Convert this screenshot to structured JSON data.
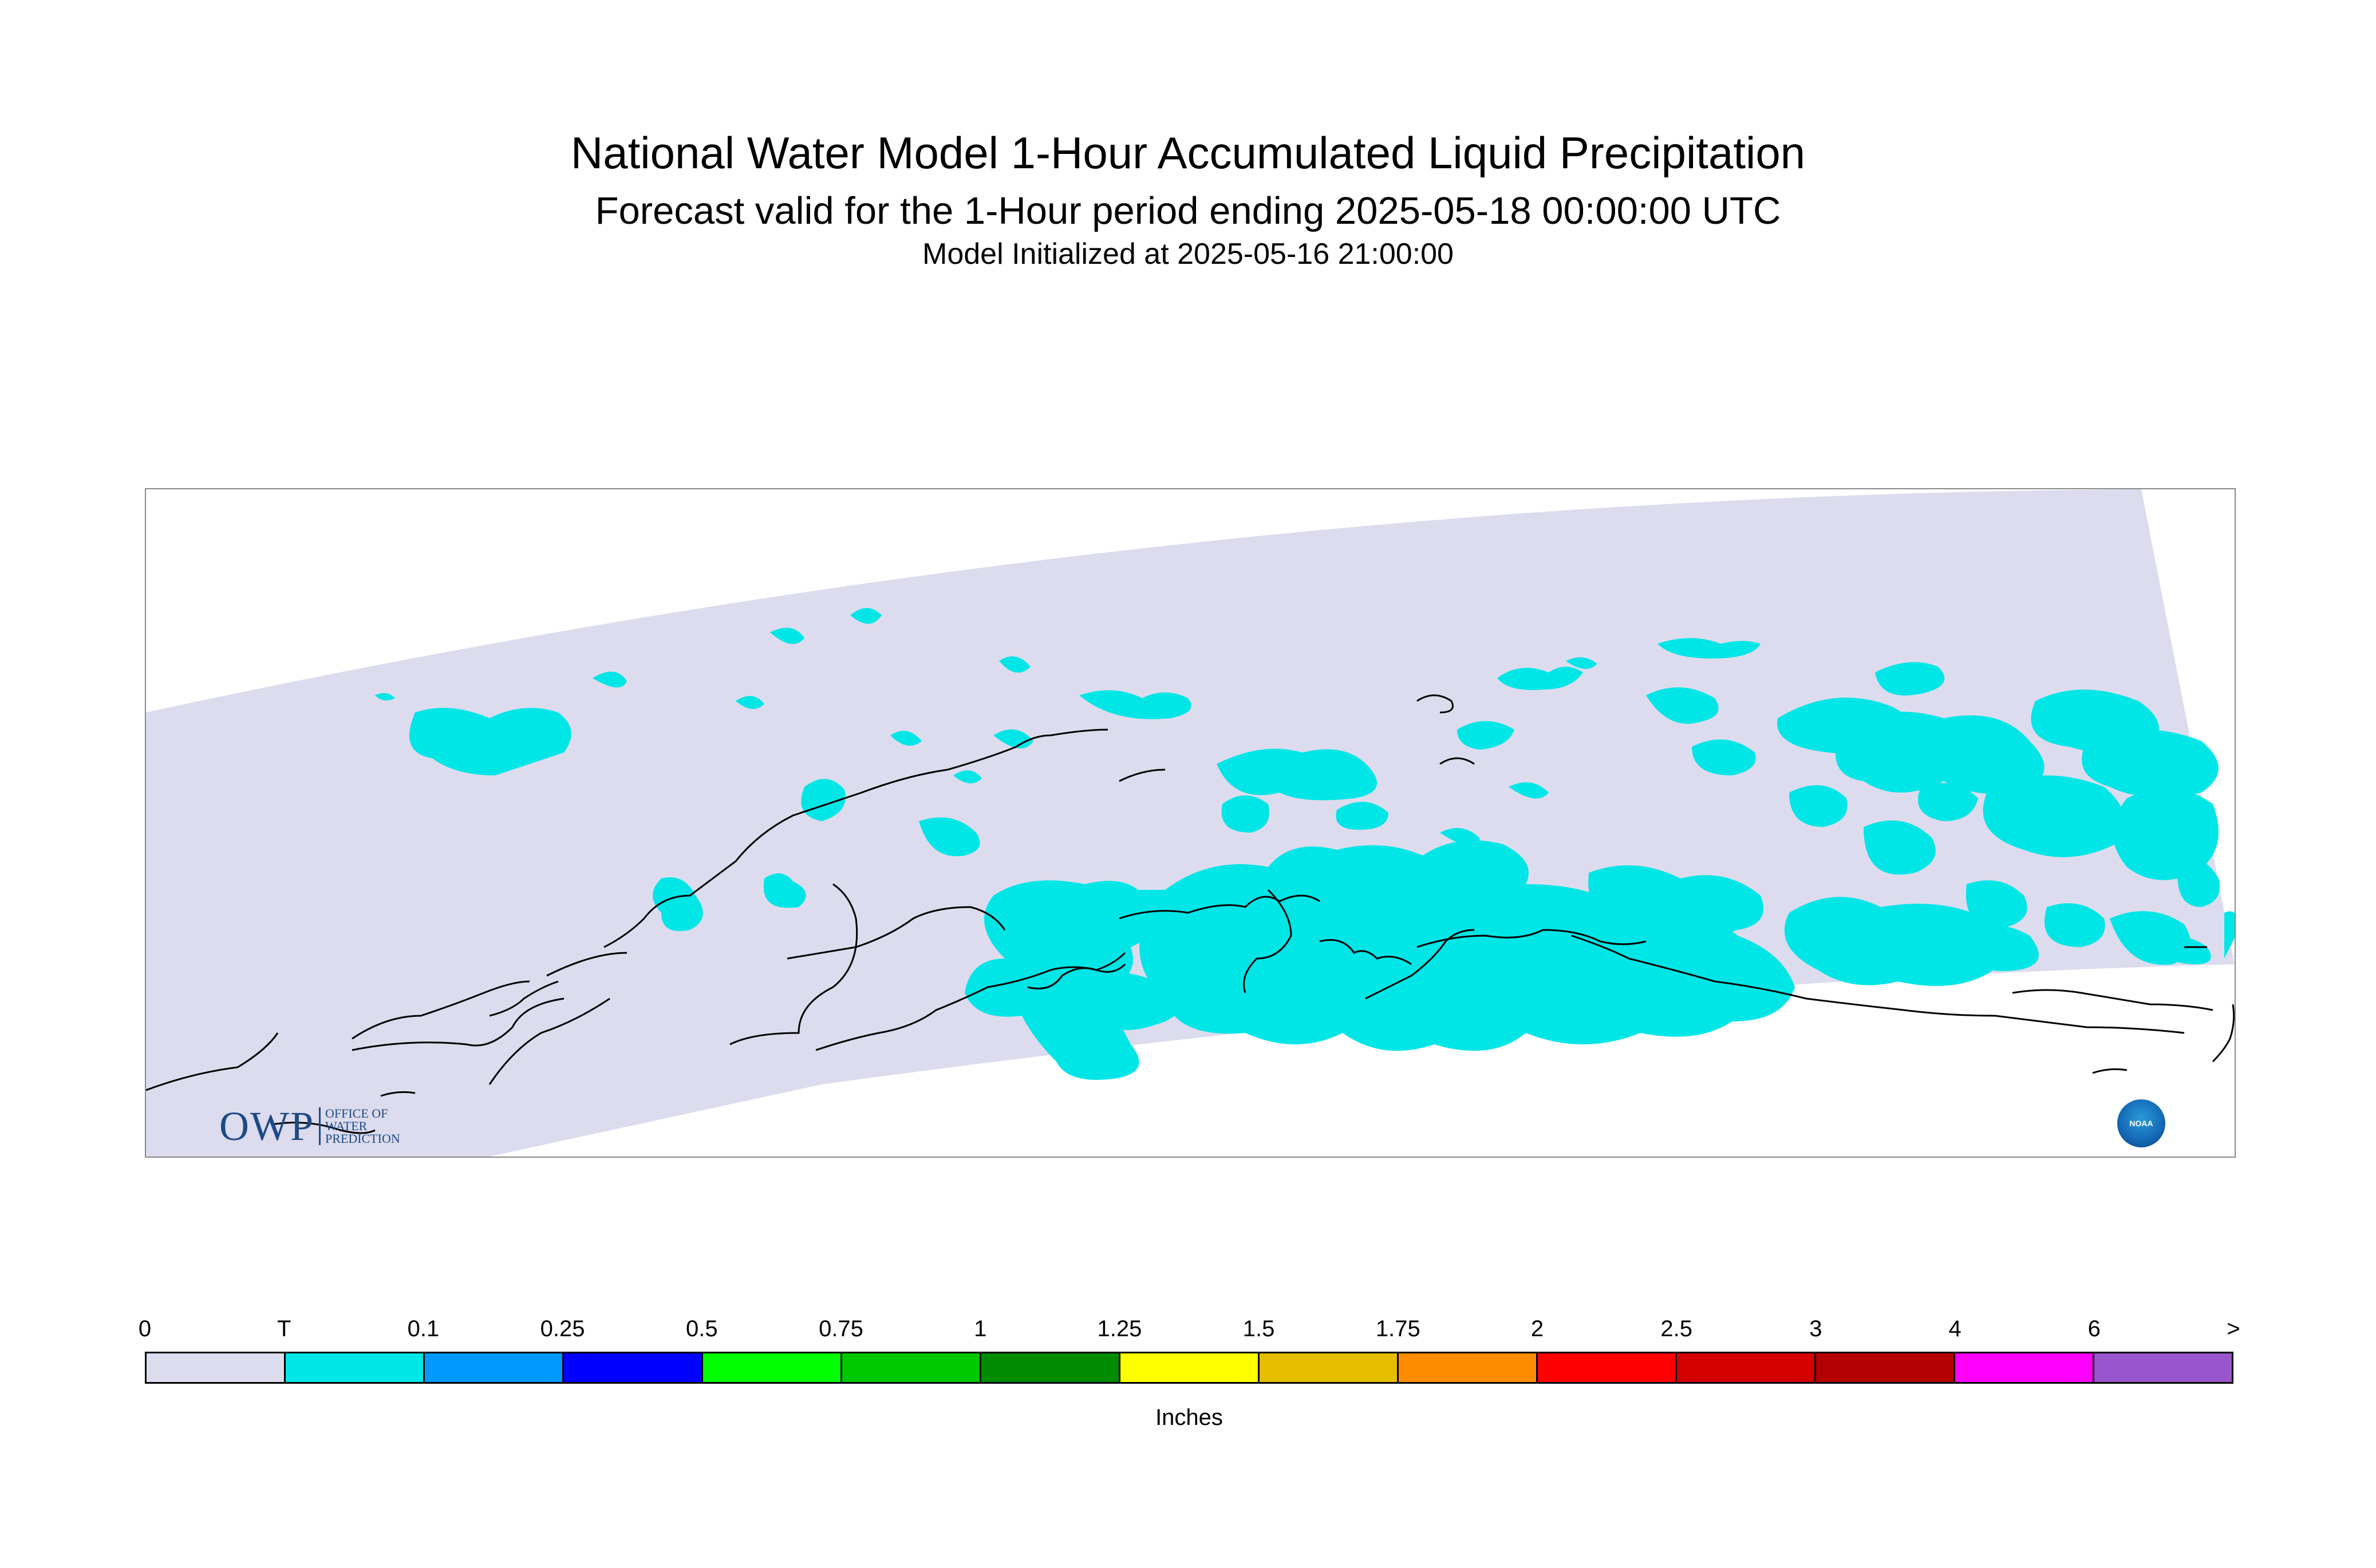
{
  "header": {
    "title": "National Water Model 1-Hour Accumulated Liquid Precipitation",
    "subtitle": "Forecast valid for the 1-Hour period ending 2025-05-18 00:00:00 UTC",
    "init": "Model Initialized at 2025-05-16 21:00:00"
  },
  "logos": {
    "owp_letters": "OWP",
    "owp_line1": "OFFICE OF",
    "owp_line2": "WATER",
    "owp_line3": "PREDICTION",
    "noaa": "NOAA"
  },
  "legend": {
    "ticks": [
      "0",
      "T",
      "0.1",
      "0.25",
      "0.5",
      "0.75",
      "1",
      "1.25",
      "1.5",
      "1.75",
      "2",
      "2.5",
      "3",
      "4",
      "6",
      ">"
    ],
    "colors": [
      "#dcdcee",
      "#00e6e6",
      "#0099ff",
      "#0000ff",
      "#00ff00",
      "#00c800",
      "#008c00",
      "#ffff00",
      "#e6be00",
      "#ff8c00",
      "#ff0000",
      "#d20000",
      "#b40000",
      "#ff00ff",
      "#9955cc"
    ],
    "units": "Inches"
  },
  "map": {
    "domain_fill": "#dcdcee",
    "precip_color": "#00e6e6",
    "coast_color": "#000000"
  }
}
